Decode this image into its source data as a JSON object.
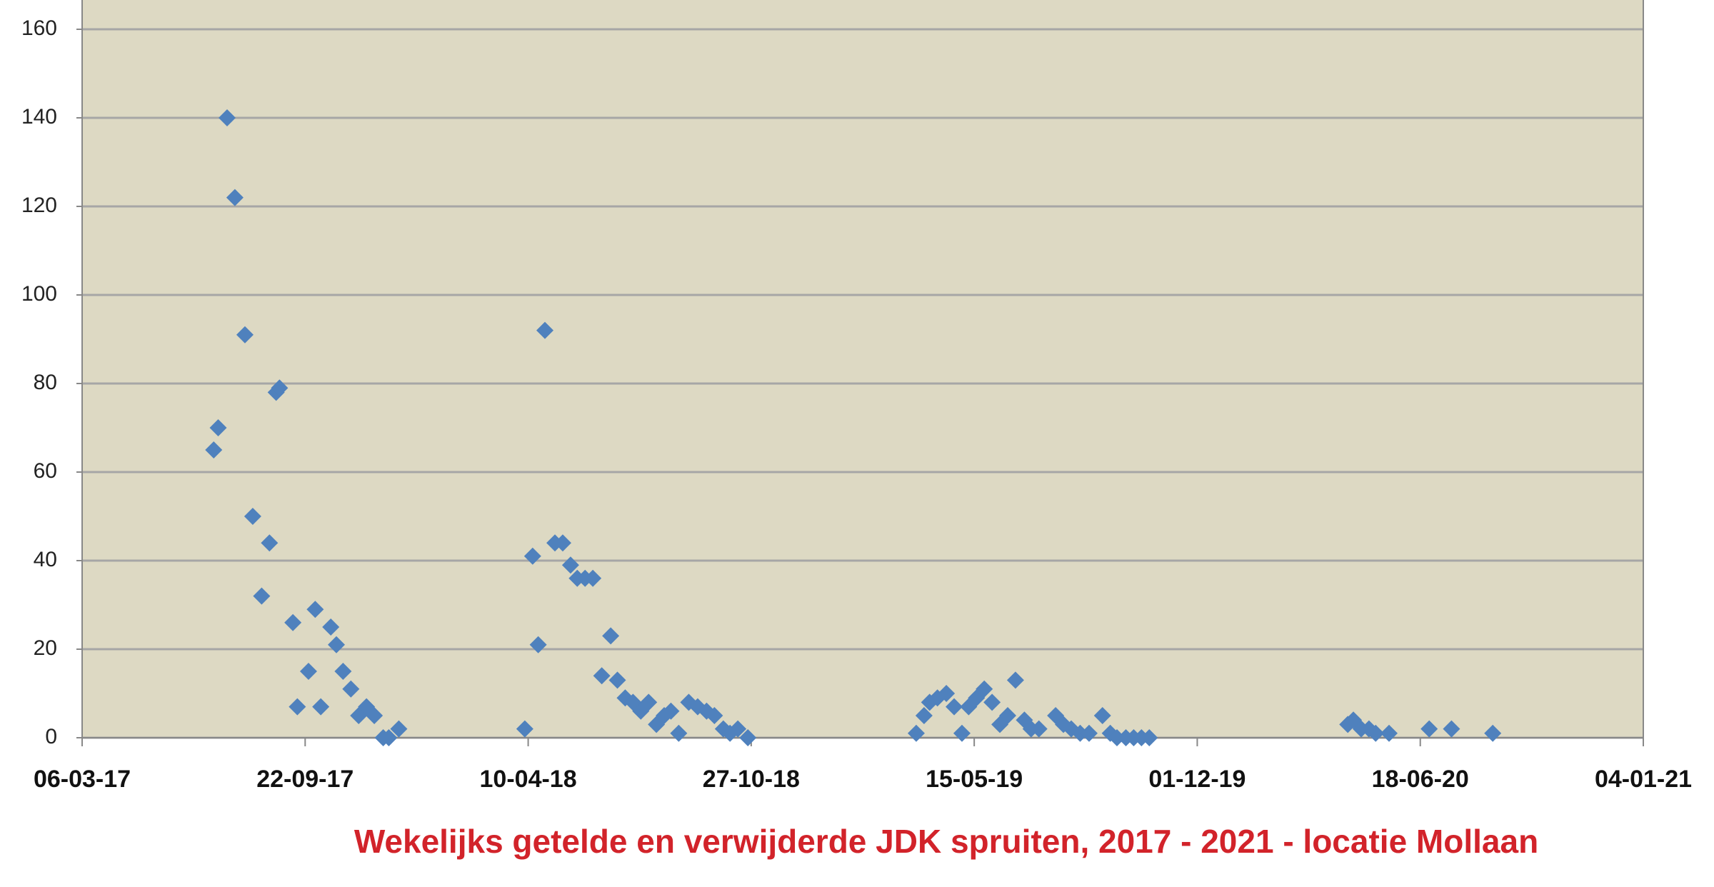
{
  "chart_data": {
    "type": "scatter",
    "title": "Wekelijks getelde en verwijderde JDK spruiten, 2017 - 2021 - locatie Mollaan",
    "color": "#4f81bd",
    "grid": true,
    "xlim": [
      "2017-03-06",
      "2021-01-04"
    ],
    "xticks": [
      {
        "value": "2017-03-06",
        "label": "06-03-17"
      },
      {
        "value": "2017-09-22",
        "label": "22-09-17"
      },
      {
        "value": "2018-04-10",
        "label": "10-04-18"
      },
      {
        "value": "2018-10-27",
        "label": "27-10-18"
      },
      {
        "value": "2019-05-15",
        "label": "15-05-19"
      },
      {
        "value": "2019-12-01",
        "label": "01-12-19"
      },
      {
        "value": "2020-06-18",
        "label": "18-06-20"
      },
      {
        "value": "2021-01-04",
        "label": "04-01-21"
      }
    ],
    "ylim": [
      0,
      160
    ],
    "yticks": [
      0,
      20,
      40,
      60,
      80,
      100,
      120,
      140,
      160
    ],
    "x": [
      "2017-07-02",
      "2017-07-06",
      "2017-07-14",
      "2017-07-21",
      "2017-07-30",
      "2017-08-06",
      "2017-08-14",
      "2017-08-21",
      "2017-08-27",
      "2017-08-30",
      "2017-09-11",
      "2017-09-15",
      "2017-09-25",
      "2017-10-01",
      "2017-10-06",
      "2017-10-15",
      "2017-10-20",
      "2017-10-26",
      "2017-11-02",
      "2017-11-09",
      "2017-11-16",
      "2017-11-23",
      "2017-12-01",
      "2017-12-06",
      "2017-12-15",
      "2018-04-07",
      "2018-04-14",
      "2018-04-19",
      "2018-04-25",
      "2018-05-04",
      "2018-05-11",
      "2018-05-18",
      "2018-05-24",
      "2018-05-31",
      "2018-06-07",
      "2018-06-15",
      "2018-06-23",
      "2018-06-29",
      "2018-07-06",
      "2018-07-13",
      "2018-07-20",
      "2018-07-27",
      "2018-08-03",
      "2018-08-10",
      "2018-08-16",
      "2018-08-23",
      "2018-09-01",
      "2018-09-09",
      "2018-09-17",
      "2018-09-24",
      "2018-10-02",
      "2018-10-08",
      "2018-10-15",
      "2018-10-24",
      "2019-03-24",
      "2019-03-31",
      "2019-04-05",
      "2019-04-12",
      "2019-04-20",
      "2019-04-27",
      "2019-05-04",
      "2019-05-10",
      "2019-05-17",
      "2019-05-24",
      "2019-05-31",
      "2019-06-07",
      "2019-06-14",
      "2019-06-21",
      "2019-06-29",
      "2019-07-05",
      "2019-07-12",
      "2019-07-27",
      "2019-08-03",
      "2019-08-10",
      "2019-08-18",
      "2019-08-26",
      "2019-09-07",
      "2019-09-14",
      "2019-09-20",
      "2019-09-28",
      "2019-10-05",
      "2019-10-12",
      "2019-10-19",
      "2020-04-14",
      "2020-04-19",
      "2020-04-26",
      "2020-05-03",
      "2020-05-09",
      "2020-05-21",
      "2020-06-26",
      "2020-07-16",
      "2020-08-22"
    ],
    "values": [
      65,
      70,
      140,
      122,
      91,
      50,
      32,
      44,
      78,
      79,
      26,
      7,
      15,
      29,
      7,
      25,
      21,
      15,
      11,
      5,
      7,
      5,
      0,
      0,
      2,
      2,
      41,
      21,
      92,
      44,
      44,
      39,
      36,
      36,
      36,
      14,
      23,
      13,
      9,
      8,
      6,
      8,
      3,
      5,
      6,
      1,
      8,
      7,
      6,
      5,
      2,
      1,
      2,
      0,
      1,
      5,
      8,
      9,
      10,
      7,
      1,
      7,
      9,
      11,
      8,
      3,
      5,
      13,
      4,
      2,
      2,
      5,
      3,
      2,
      1,
      1,
      5,
      1,
      0,
      0,
      0,
      0,
      0,
      3,
      4,
      2,
      2,
      1,
      1,
      2,
      2,
      1
    ]
  }
}
